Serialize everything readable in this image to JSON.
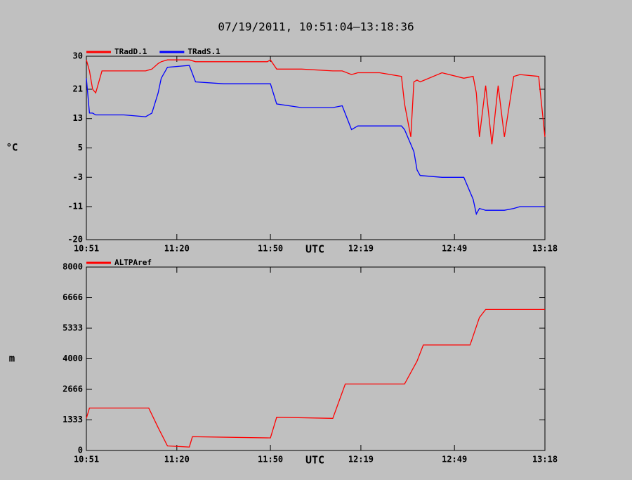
{
  "chart_data": [
    {
      "type": "line",
      "title": "07/19/2011, 10:51:04–13:18:36",
      "xlabel": "UTC",
      "ylabel": "°C",
      "x": [
        "10:51",
        "10:52",
        "10:53",
        "10:54",
        "10:56",
        "11:03",
        "11:10",
        "11:12",
        "11:14",
        "11:15",
        "11:17",
        "11:24",
        "11:26",
        "11:35",
        "11:49",
        "11:50",
        "11:52",
        "12:00",
        "12:10",
        "12:13",
        "12:16",
        "12:18",
        "12:25",
        "12:32",
        "12:33",
        "12:35",
        "12:36",
        "12:37",
        "12:38",
        "12:45",
        "12:52",
        "12:55",
        "12:56",
        "12:57",
        "12:59",
        "13:01",
        "13:03",
        "13:05",
        "13:08",
        "13:10",
        "13:16",
        "13:18"
      ],
      "series": [
        {
          "name": "TRadD.1",
          "color": "#ff0000",
          "values": [
            29,
            26,
            21,
            20,
            26,
            26,
            26,
            26.5,
            28,
            28.5,
            29,
            29,
            28.5,
            28.5,
            28.5,
            29,
            26.5,
            26.5,
            26,
            26,
            25,
            25.5,
            25.5,
            24.5,
            17,
            8,
            23,
            23.5,
            23,
            25.5,
            24,
            24.5,
            20,
            8,
            22,
            6,
            22,
            8,
            24.5,
            25,
            24.5,
            8
          ]
        },
        {
          "name": "TRadS.1",
          "color": "#0000ff",
          "values": [
            24,
            14.5,
            14.5,
            14,
            14,
            14,
            13.5,
            14.5,
            20,
            24,
            27,
            27.5,
            23,
            22.5,
            22.5,
            22.5,
            17,
            16,
            16,
            16.5,
            10,
            11,
            11,
            11,
            10,
            6,
            4,
            -1,
            -2.5,
            -3,
            -3,
            -9,
            -13,
            -11.5,
            -12,
            -12,
            -12,
            -12,
            -11.5,
            -11,
            -11,
            -11
          ]
        }
      ],
      "xlim": [
        "10:51",
        "13:18"
      ],
      "xticks": [
        "10:51",
        "11:20",
        "11:50",
        "12:19",
        "12:49",
        "13:18"
      ],
      "ylim": [
        -20,
        30
      ],
      "yticks": [
        -20,
        -11,
        -3,
        5,
        13,
        21,
        30
      ],
      "legend": "top-left"
    },
    {
      "type": "line",
      "xlabel": "UTC",
      "ylabel": "m",
      "x": [
        "10:51",
        "10:52",
        "11:11",
        "11:14",
        "11:17",
        "11:24",
        "11:25",
        "11:50",
        "11:52",
        "12:10",
        "12:14",
        "12:33",
        "12:37",
        "12:39",
        "12:54",
        "12:57",
        "12:59",
        "13:18"
      ],
      "series": [
        {
          "name": "ALTPAref",
          "color": "#ff0000",
          "values": [
            1400,
            1850,
            1850,
            1000,
            200,
            150,
            600,
            550,
            1450,
            1400,
            2900,
            2900,
            3900,
            4600,
            4600,
            5800,
            6150,
            6150
          ]
        }
      ],
      "xlim": [
        "10:51",
        "13:18"
      ],
      "xticks": [
        "10:51",
        "11:20",
        "11:50",
        "12:19",
        "12:49",
        "13:18"
      ],
      "ylim": [
        0,
        8000
      ],
      "yticks": [
        0,
        1333,
        2666,
        4000,
        5333,
        6666,
        8000
      ],
      "legend": "top-left"
    }
  ]
}
